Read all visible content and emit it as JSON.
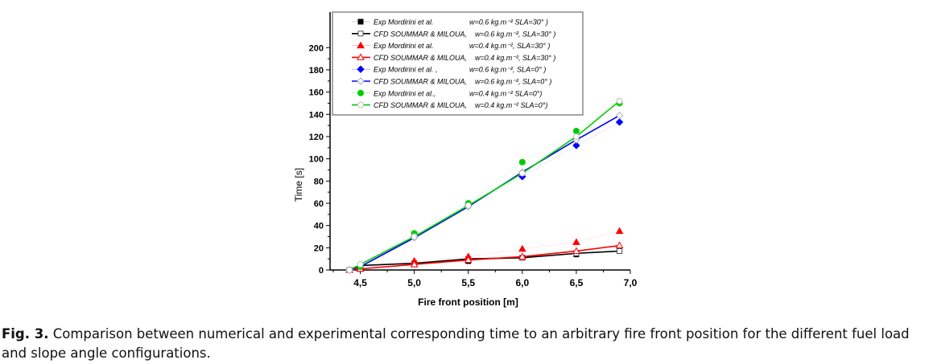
{
  "chart_data": {
    "type": "line",
    "xlabel": "Fire front position [m]",
    "ylabel": "Time [s]",
    "xlim": [
      4.22,
      7.0
    ],
    "ylim": [
      0,
      232
    ],
    "xticks": [
      4.5,
      5.0,
      5.5,
      6.0,
      6.5,
      7.0
    ],
    "xtick_labels": [
      "4,5",
      "5,0",
      "5,5",
      "6,0",
      "6,5",
      "7,0"
    ],
    "yticks": [
      0,
      20,
      40,
      60,
      80,
      100,
      120,
      140,
      160,
      180,
      200
    ],
    "yticks_labels": [
      "0",
      "20",
      "40",
      "60",
      "80",
      "100",
      "120",
      "140",
      "160",
      "180",
      "200"
    ],
    "grid": false,
    "legend_position": "top-left",
    "x": [
      4.4,
      4.5,
      5.0,
      5.5,
      6.0,
      6.5,
      6.9
    ],
    "series": [
      {
        "name": "Exp Mordirini et al.",
        "params": "w=0.6 kg.m⁻²   SLA=30° )",
        "color": "#000000",
        "marker": "square-filled",
        "line": "dotted",
        "values": [
          0,
          1,
          5,
          8,
          11,
          14,
          17
        ]
      },
      {
        "name": "CFD SOUMMAR & MILOUA,",
        "params": "w=0.6 kg.m⁻²,   SLA=30° )",
        "color": "#000000",
        "marker": "square-open",
        "line": "solid",
        "values": [
          0,
          4,
          6,
          10,
          11,
          15,
          17
        ]
      },
      {
        "name": "Exp Mordirini et al.",
        "params": "w=0.4 kg.m⁻²,   SLA=30° )",
        "color": "#ff0000",
        "marker": "triangle-filled",
        "line": "dotted",
        "values": [
          0,
          1,
          8,
          12,
          19,
          25,
          35
        ]
      },
      {
        "name": "CFD SOUMMAR & MILOUA,",
        "params": "w=0.4 kg.m⁻²,   SLA=30° )",
        "color": "#ff0000",
        "marker": "triangle-open",
        "line": "solid",
        "values": [
          0,
          1,
          5,
          9,
          12,
          17,
          22
        ]
      },
      {
        "name": "Exp Mordirini et al. ,",
        "params": "w=0.6 kg.m⁻²,   SLA=0°   )",
        "color": "#0000ff",
        "marker": "diamond-filled",
        "line": "dotted",
        "values": [
          0,
          3,
          30,
          58,
          84,
          112,
          133
        ]
      },
      {
        "name": "CFD SOUMMAR & MILOUA,",
        "params": "w=0.6 kg.m⁻²,   SLA=0° )",
        "color": "#0000ff",
        "marker": "diamond-open",
        "line": "solid",
        "values": [
          0,
          3,
          29,
          57,
          88,
          117,
          139
        ]
      },
      {
        "name": "Exp Mordirini et al.,",
        "params": "w=0.4 kg.m⁻²   SLA=0°)",
        "color": "#00cc00",
        "marker": "circle-filled",
        "line": "dotted",
        "values": [
          0,
          3,
          33,
          60,
          97,
          125,
          150
        ]
      },
      {
        "name": "CFD SOUMMAR & MILOUA,",
        "params": "w=0.4 kg.m⁻²   SLA=0°)",
        "color": "#00cc00",
        "marker": "circle-open",
        "line": "solid",
        "values": [
          0,
          5,
          30,
          58,
          87,
          120,
          152
        ]
      }
    ]
  },
  "caption": {
    "label": "Fig. 3.",
    "text": " Comparison between numerical and experimental corresponding time to an arbitrary fire front position for the different fuel load and slope angle configurations."
  }
}
